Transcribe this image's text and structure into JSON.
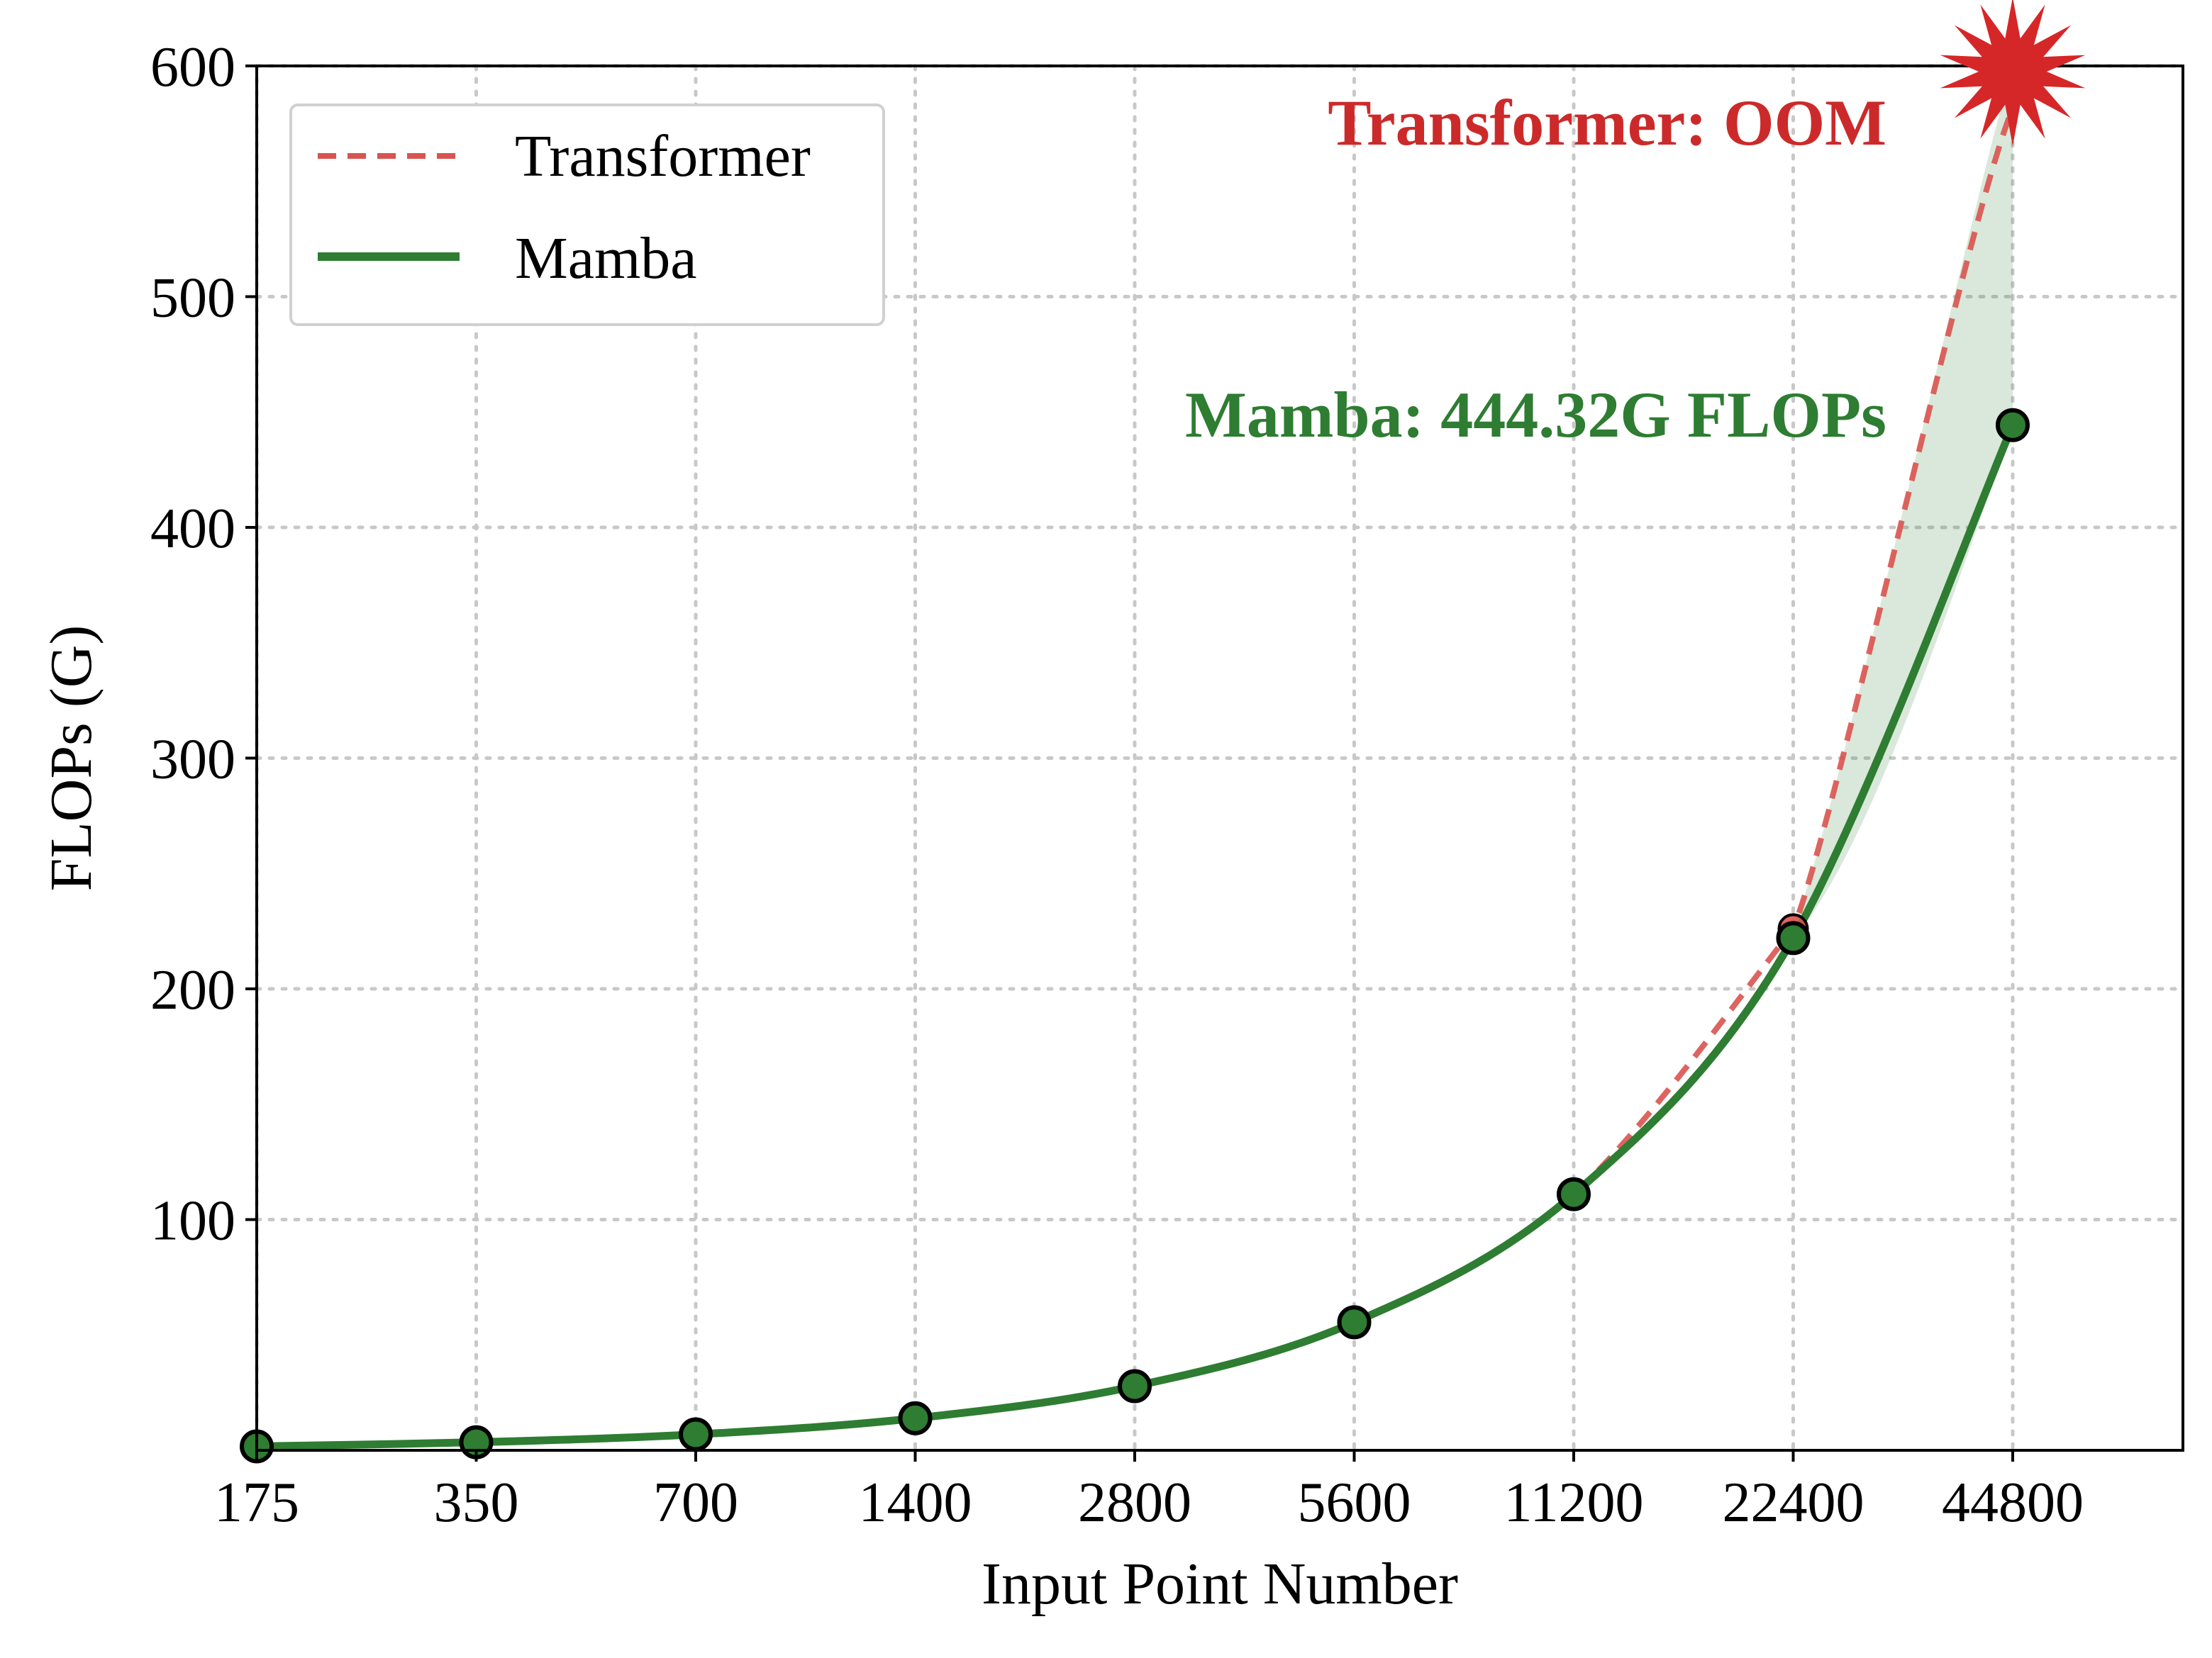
{
  "chart_data": {
    "type": "line",
    "title": "",
    "xlabel": "Input Point Number",
    "ylabel": "FLOPs (G)",
    "categories": [
      "175",
      "350",
      "700",
      "1400",
      "2800",
      "5600",
      "11200",
      "22400",
      "44800"
    ],
    "ylim": [
      0,
      600
    ],
    "yticks": [
      100,
      200,
      300,
      400,
      500,
      600
    ],
    "grid": true,
    "legend_position": "top-left",
    "series": [
      {
        "name": "Transformer",
        "style": "dashed",
        "color": "#d9534f",
        "values": [
          1.7,
          3.5,
          6.9,
          13.9,
          27.8,
          55.5,
          111,
          226,
          null
        ]
      },
      {
        "name": "Mamba",
        "style": "solid",
        "color": "#2e7d32",
        "marker_fill": "#2e7d32",
        "values": [
          1.7,
          3.5,
          6.9,
          13.9,
          27.8,
          55.5,
          111,
          222,
          444.32
        ]
      }
    ],
    "oom_marker": {
      "x": "44800",
      "y": 600,
      "color": "#d62728"
    },
    "annotations": [
      {
        "text": "Transformer: OOM",
        "color": "#cc2a2a"
      },
      {
        "text": "Mamba: 444.32G FLOPs",
        "color": "#2e7d32"
      }
    ],
    "fill_between_color": "#2e7d32"
  }
}
